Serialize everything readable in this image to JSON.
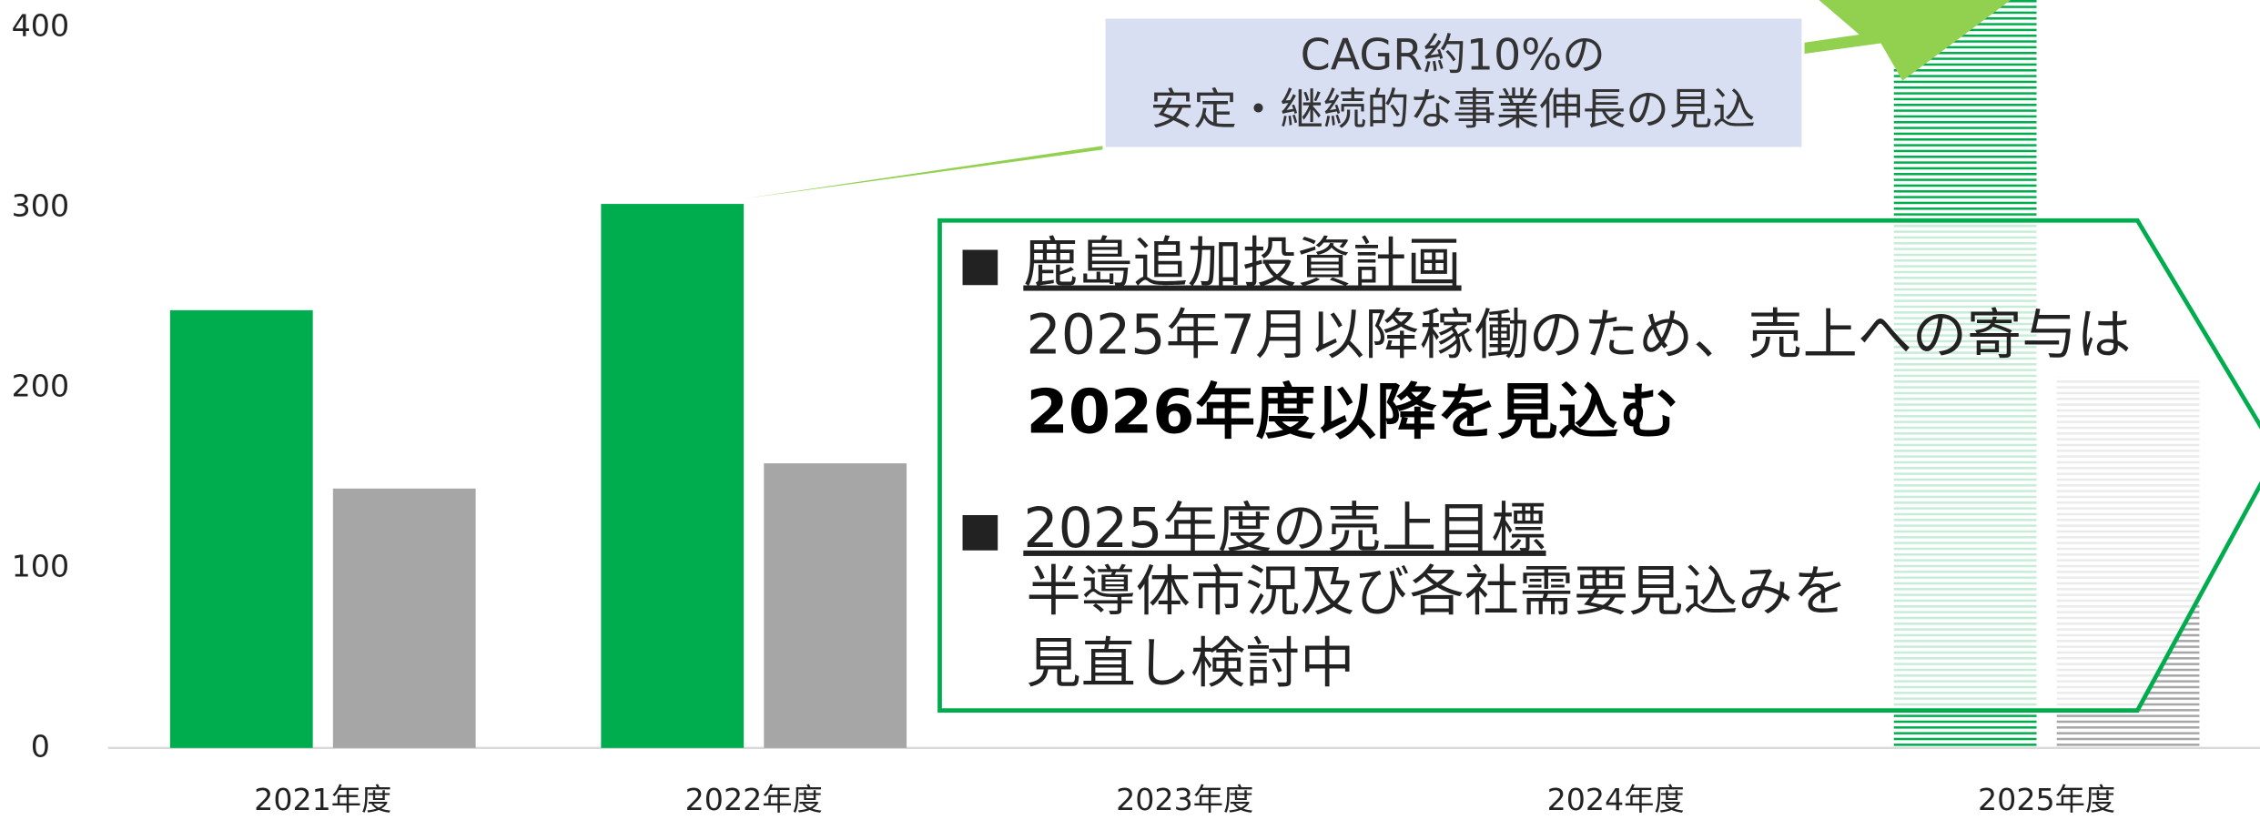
{
  "chart_data": {
    "type": "bar",
    "categories": [
      "2021年度",
      "2022年度",
      "2023年度",
      "2024年度",
      "2025年度"
    ],
    "series": [
      {
        "color": "#00ad4e",
        "values": [
          243,
          302,
          null,
          null,
          null
        ]
      },
      {
        "color": "#a6a6a6",
        "values": [
          144,
          158,
          null,
          null,
          null
        ]
      },
      {
        "color": "#00ad4e",
        "hatched": true,
        "values": [
          null,
          null,
          null,
          null,
          420
        ]
      },
      {
        "color": "#a6a6a6",
        "hatched": true,
        "values": [
          null,
          null,
          null,
          null,
          206
        ]
      }
    ],
    "ylim": [
      0,
      400
    ],
    "yticks": [
      0,
      100,
      200,
      300,
      400
    ],
    "grid": false,
    "cagr_note": [
      "CAGR約10%の",
      "安定・継続的な事業伸長の見込"
    ],
    "info_box": {
      "bullet": "■",
      "items": [
        {
          "heading": "鹿島追加投資計画",
          "lines": [
            "2025年7月以降稼働のため、売上への寄与は"
          ],
          "emphasis": "2026年度以降を見込む"
        },
        {
          "heading": "2025年度の売上目標",
          "lines": [
            "半導体市況及び各社需要見込みを",
            "見直し検討中"
          ]
        }
      ]
    }
  }
}
